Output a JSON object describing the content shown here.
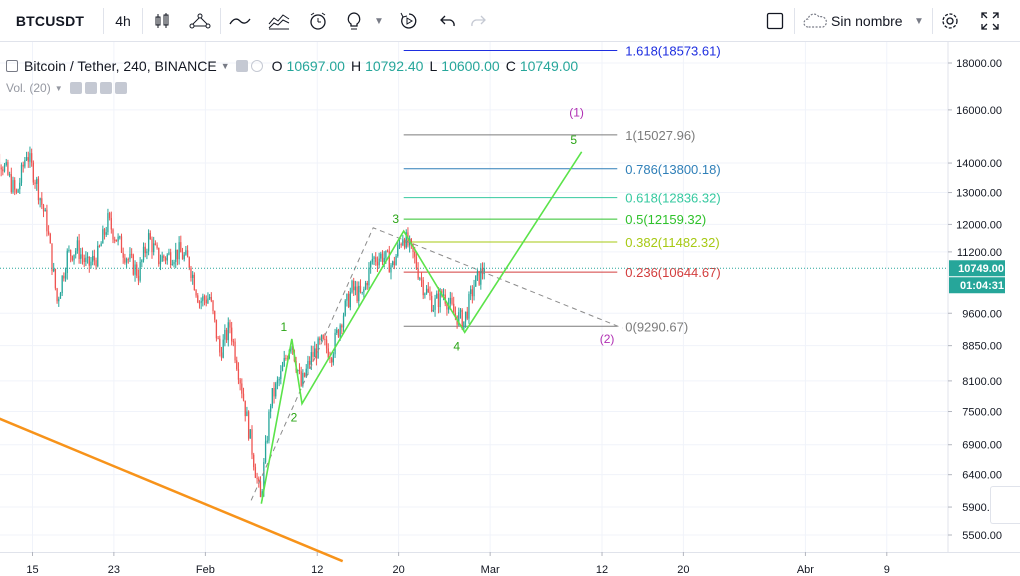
{
  "toolbar": {
    "symbol": "BTCUSDT",
    "interval": "4h",
    "layout_name": "Sin nombre",
    "icons": [
      "candles-icon",
      "indicators-icon",
      "line-tool-icon",
      "compare-icon",
      "alert-icon",
      "ideas-icon",
      "replay-icon",
      "undo-icon",
      "redo-icon",
      "square-icon",
      "cloud-icon",
      "settings-icon",
      "fullscreen-icon"
    ]
  },
  "legend": {
    "title": "Bitcoin / Tether, 240, BINANCE",
    "o_label": "O",
    "o": "10697.00",
    "h_label": "H",
    "h": "10792.40",
    "l_label": "L",
    "l": "10600.00",
    "c_label": "C",
    "c": "10749.00",
    "vol_label": "Vol. (20)"
  },
  "colors": {
    "up": "#26a69a",
    "down": "#ef5350",
    "wave": "#5be34a",
    "wave_label": "#2aa515",
    "trendline": "#f7931a",
    "projection": "#8b8b8b",
    "wave_degree": "#b02fb3"
  },
  "chart_data": {
    "type": "candlestick",
    "price_axis": {
      "ticks": [
        "18000.00",
        "16000.00",
        "14000.00",
        "13000.00",
        "12000.00",
        "11200.00",
        "9600.00",
        "8850.00",
        "8100.00",
        "7500.00",
        "6900.00",
        "6400.00",
        "5900.00",
        "5500.00"
      ],
      "last_price": "10749.00",
      "countdown": "01:04:31",
      "scale": "log"
    },
    "time_axis": {
      "ticks": [
        {
          "label": "15",
          "day": 15
        },
        {
          "label": "23",
          "day": 23
        },
        {
          "label": "Feb",
          "day": 32
        },
        {
          "label": "12",
          "day": 43
        },
        {
          "label": "20",
          "day": 51
        },
        {
          "label": "Mar",
          "day": 60
        },
        {
          "label": "12",
          "day": 71
        },
        {
          "label": "20",
          "day": 79
        },
        {
          "label": "Abr",
          "day": 91
        },
        {
          "label": "9",
          "day": 99
        }
      ]
    },
    "path_points": [
      {
        "day": 10.5,
        "price": 13300
      },
      {
        "day": 11.5,
        "price": 14400
      },
      {
        "day": 12.5,
        "price": 13700
      },
      {
        "day": 13.5,
        "price": 12900
      },
      {
        "day": 14.5,
        "price": 14400
      },
      {
        "day": 15.5,
        "price": 13300
      },
      {
        "day": 16.5,
        "price": 12000
      },
      {
        "day": 17.5,
        "price": 9900
      },
      {
        "day": 18.5,
        "price": 11100
      },
      {
        "day": 19.5,
        "price": 11300
      },
      {
        "day": 20.5,
        "price": 10800
      },
      {
        "day": 21.5,
        "price": 11100
      },
      {
        "day": 22.5,
        "price": 12100
      },
      {
        "day": 23.5,
        "price": 11500
      },
      {
        "day": 24.5,
        "price": 11000
      },
      {
        "day": 25.5,
        "price": 10600
      },
      {
        "day": 26.5,
        "price": 11600
      },
      {
        "day": 27.5,
        "price": 11000
      },
      {
        "day": 28.5,
        "price": 11100
      },
      {
        "day": 29.5,
        "price": 11200
      },
      {
        "day": 30.5,
        "price": 10900
      },
      {
        "day": 31.5,
        "price": 9900
      },
      {
        "day": 32.5,
        "price": 10000
      },
      {
        "day": 33.5,
        "price": 8700
      },
      {
        "day": 34.5,
        "price": 9300
      },
      {
        "day": 35.5,
        "price": 8150
      },
      {
        "day": 36.5,
        "price": 7000
      },
      {
        "day": 37.5,
        "price": 6000
      },
      {
        "day": 38.5,
        "price": 7700
      },
      {
        "day": 39.5,
        "price": 8200
      },
      {
        "day": 40.5,
        "price": 9000
      },
      {
        "day": 41.5,
        "price": 8000
      },
      {
        "day": 42.5,
        "price": 8600
      },
      {
        "day": 43.5,
        "price": 8900
      },
      {
        "day": 44.5,
        "price": 8700
      },
      {
        "day": 45.5,
        "price": 9500
      },
      {
        "day": 46.5,
        "price": 10200
      },
      {
        "day": 47.5,
        "price": 10000
      },
      {
        "day": 48.5,
        "price": 11000
      },
      {
        "day": 49.5,
        "price": 11100
      },
      {
        "day": 50.5,
        "price": 10800
      },
      {
        "day": 51.5,
        "price": 11700
      },
      {
        "day": 52.5,
        "price": 11100
      },
      {
        "day": 53.5,
        "price": 10300
      },
      {
        "day": 54.5,
        "price": 9800
      },
      {
        "day": 55.5,
        "price": 10100
      },
      {
        "day": 56.5,
        "price": 9600
      },
      {
        "day": 57.5,
        "price": 9400
      },
      {
        "day": 58.5,
        "price": 10300
      },
      {
        "day": 59.5,
        "price": 10749
      }
    ],
    "fibonacci": {
      "levels": [
        {
          "label": "1.618(18573.61)",
          "price": 18573.61,
          "color": "#1e2ee0"
        },
        {
          "label": "1(15027.96)",
          "price": 15027.96,
          "color": "#7c7c7c"
        },
        {
          "label": "0.786(13800.18)",
          "price": 13800.18,
          "color": "#2f7fb8"
        },
        {
          "label": "0.618(12836.32)",
          "price": 12836.32,
          "color": "#36c9a0"
        },
        {
          "label": "0.5(12159.32)",
          "price": 12159.32,
          "color": "#2fc22b"
        },
        {
          "label": "0.382(11482.32)",
          "price": 11482.32,
          "color": "#a7c913"
        },
        {
          "label": "0.236(10644.67)",
          "price": 10644.67,
          "color": "#d33d3d"
        },
        {
          "label": "0(9290.67)",
          "price": 9290.67,
          "color": "#7c7c7c"
        }
      ],
      "day_start": 51.5,
      "day_end": 72.5
    },
    "elliott_waves": [
      {
        "label": "",
        "day": 37.5,
        "price": 5950
      },
      {
        "label": "1",
        "day": 40.5,
        "price": 9000
      },
      {
        "label": "2",
        "day": 41.5,
        "price": 7650
      },
      {
        "label": "3",
        "day": 51.5,
        "price": 11800
      },
      {
        "label": "4",
        "day": 57.5,
        "price": 9150
      },
      {
        "label": "5",
        "day": 69,
        "price": 14400
      }
    ],
    "wave_degree_labels": [
      {
        "label": "(1)",
        "day": 68.5,
        "price": 15900
      },
      {
        "label": "(2)",
        "day": 71.5,
        "price": 9000
      }
    ],
    "projection_line": [
      {
        "day": 36.5,
        "price": 6000
      },
      {
        "day": 48.5,
        "price": 11900
      },
      {
        "day": 73,
        "price": 9250
      }
    ],
    "trendline": [
      {
        "day": 0.5,
        "price": 8300
      },
      {
        "day": 45.5,
        "price": 5150
      }
    ]
  }
}
